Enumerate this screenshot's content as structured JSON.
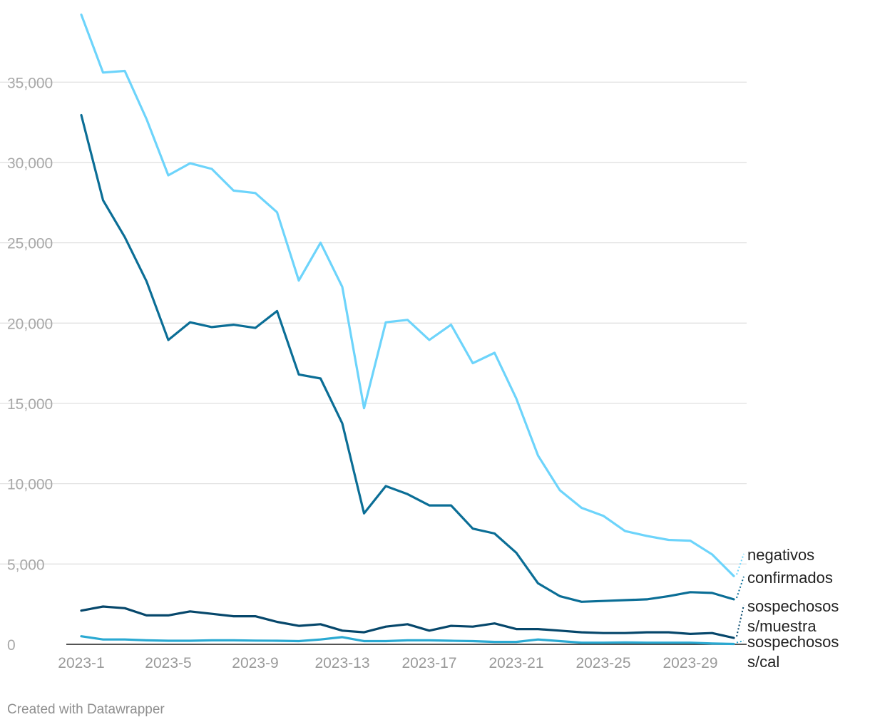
{
  "chart_data": {
    "type": "line",
    "title": "",
    "xlabel": "",
    "ylabel": "",
    "ylim": [
      0,
      39500
    ],
    "yticks": [
      0,
      5000,
      10000,
      15000,
      20000,
      25000,
      30000,
      35000
    ],
    "ytick_labels": [
      "0",
      "5,000",
      "10,000",
      "15,000",
      "20,000",
      "25,000",
      "30,000",
      "35,000"
    ],
    "categories": [
      "2023-1",
      "2023-2",
      "2023-3",
      "2023-4",
      "2023-5",
      "2023-6",
      "2023-7",
      "2023-8",
      "2023-9",
      "2023-10",
      "2023-11",
      "2023-12",
      "2023-13",
      "2023-14",
      "2023-15",
      "2023-16",
      "2023-17",
      "2023-18",
      "2023-19",
      "2023-20",
      "2023-21",
      "2023-22",
      "2023-23",
      "2023-24",
      "2023-25",
      "2023-26",
      "2023-27",
      "2023-28",
      "2023-29",
      "2023-30",
      "2023-31"
    ],
    "xtick_labels": [
      "2023-1",
      "2023-5",
      "2023-9",
      "2023-13",
      "2023-17",
      "2023-21",
      "2023-25",
      "2023-29"
    ],
    "grid": true,
    "series": [
      {
        "name": "negativos",
        "label_lines": [
          "negativos"
        ],
        "color": "#6dd4fb",
        "values": [
          39200,
          35600,
          35700,
          32700,
          29200,
          29950,
          29600,
          28250,
          28100,
          26900,
          22650,
          25000,
          22250,
          14700,
          20050,
          20200,
          18950,
          19900,
          17500,
          18150,
          15300,
          11750,
          9600,
          8500,
          8000,
          7050,
          6750,
          6500,
          6450,
          5600,
          4250
        ]
      },
      {
        "name": "confirmados",
        "label_lines": [
          "confirmados"
        ],
        "color": "#0b6e96",
        "values": [
          32950,
          27650,
          25350,
          22600,
          18950,
          20050,
          19750,
          19900,
          19700,
          20750,
          16800,
          16550,
          13750,
          8150,
          9850,
          9350,
          8650,
          8650,
          7200,
          6900,
          5700,
          3800,
          3000,
          2650,
          2700,
          2750,
          2800,
          3000,
          3250,
          3200,
          2800
        ]
      },
      {
        "name": "sospechosos s/muestra",
        "label_lines": [
          "sospechosos",
          "s/muestra"
        ],
        "color": "#06476b",
        "values": [
          2100,
          2350,
          2250,
          1800,
          1800,
          2050,
          1900,
          1750,
          1750,
          1400,
          1150,
          1250,
          850,
          750,
          1100,
          1250,
          850,
          1150,
          1100,
          1300,
          950,
          950,
          850,
          750,
          700,
          700,
          750,
          750,
          650,
          700,
          400
        ]
      },
      {
        "name": "sospechosos s/cal",
        "label_lines": [
          "sospechosos",
          "s/cal"
        ],
        "color": "#2aa9d2",
        "values": [
          500,
          300,
          300,
          250,
          220,
          220,
          250,
          250,
          230,
          220,
          200,
          300,
          450,
          200,
          200,
          250,
          250,
          220,
          200,
          150,
          150,
          300,
          200,
          100,
          100,
          120,
          100,
          100,
          100,
          50,
          20
        ]
      }
    ]
  },
  "footer": {
    "credit": "Created with Datawrapper"
  }
}
